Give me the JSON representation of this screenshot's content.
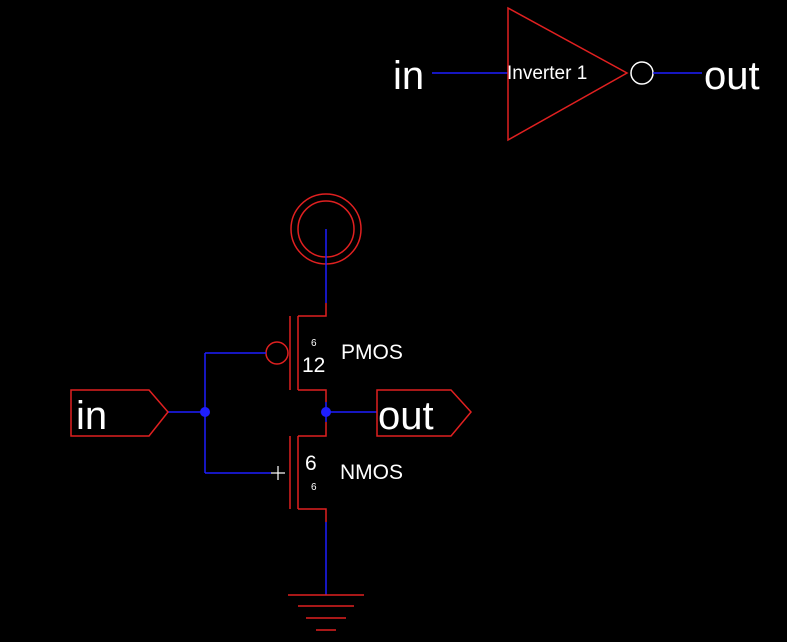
{
  "colors": {
    "background": "#000000",
    "wire": "#1e1eff",
    "device": "#e02020",
    "text": "#ffffff",
    "node": "#1e1eff"
  },
  "symbol": {
    "input_label": "in",
    "output_label": "out",
    "gate_name": "Inverter 1"
  },
  "schematic": {
    "input_port": "in",
    "output_port": "out",
    "pmos": {
      "name": "PMOS",
      "width": "12",
      "length": "6"
    },
    "nmos": {
      "name": "NMOS",
      "width": "6",
      "length": "6"
    }
  },
  "icons": [
    "vdd-supply-icon",
    "ground-icon",
    "input-port-icon",
    "output-port-icon",
    "pmos-transistor-icon",
    "nmos-transistor-icon",
    "inverter-gate-icon"
  ]
}
